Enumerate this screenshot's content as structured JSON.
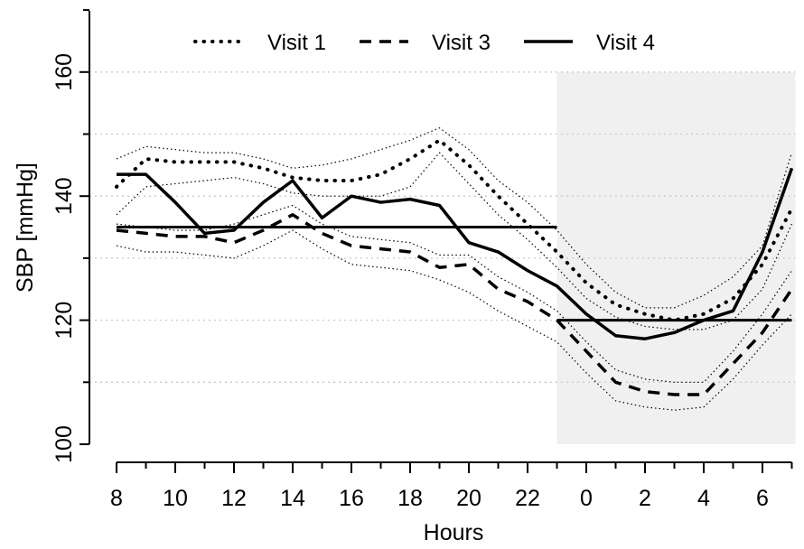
{
  "chart_data": {
    "type": "line",
    "title": "",
    "xlabel": "Hours",
    "ylabel": "SBP [mmHg]",
    "ylim": [
      100,
      170
    ],
    "yticks": [
      100,
      120,
      140,
      160
    ],
    "grid_y": [
      110,
      120,
      130,
      140,
      150,
      160
    ],
    "x_hours": [
      8,
      9,
      10,
      11,
      12,
      13,
      14,
      15,
      16,
      17,
      18,
      19,
      20,
      21,
      22,
      23,
      0,
      1,
      2,
      3,
      4,
      5,
      6,
      7
    ],
    "x_tick_labels": [
      "8",
      "10",
      "12",
      "14",
      "16",
      "18",
      "20",
      "22",
      "0",
      "2",
      "4",
      "6"
    ],
    "night_shading": {
      "from": "23",
      "to": "7",
      "color": "#f0f0f0"
    },
    "thresholds": [
      {
        "from": "8",
        "to": "23",
        "value": 135
      },
      {
        "from": "23",
        "to": "7",
        "value": 120
      }
    ],
    "legend_position": "top",
    "series": [
      {
        "name": "Visit 1",
        "style": "dotted",
        "values": [
          141.5,
          146,
          145.5,
          145.5,
          145.5,
          144.5,
          143,
          142.5,
          142.5,
          143.5,
          146,
          149,
          145,
          140,
          135.5,
          131,
          126,
          122.5,
          121,
          120,
          121,
          123.5,
          129,
          138
        ],
        "band_upper": [
          146,
          148,
          147.5,
          147,
          147,
          146,
          144.5,
          145,
          146,
          147.5,
          149,
          151,
          147.5,
          142.5,
          139,
          134.5,
          129,
          124.5,
          122,
          122,
          124,
          127,
          132,
          147
        ],
        "band_lower": [
          137,
          141.5,
          142,
          142.5,
          143,
          142,
          140.5,
          140,
          140,
          140,
          141.5,
          147,
          142,
          137,
          133,
          128.5,
          123.5,
          120.5,
          119,
          118.5,
          118.5,
          120,
          125,
          135.5
        ]
      },
      {
        "name": "Visit 3",
        "style": "dashed",
        "values": [
          134.5,
          134,
          133.5,
          133.5,
          132.5,
          134.5,
          137,
          134,
          132,
          131.5,
          131,
          128.5,
          129,
          125,
          123,
          120,
          115,
          110,
          108.5,
          108,
          108,
          113,
          118,
          125
        ],
        "band_upper": [
          135.5,
          135,
          134.5,
          134.5,
          135.5,
          137,
          138.5,
          135.5,
          133.5,
          133,
          132.5,
          130.5,
          130.5,
          127,
          124.5,
          121.5,
          116.5,
          112,
          110.5,
          110,
          110,
          115,
          121,
          128
        ],
        "band_lower": [
          132,
          131,
          131,
          130.5,
          130,
          132,
          134.5,
          131.5,
          129,
          128.5,
          128,
          126.5,
          124.5,
          121.5,
          119,
          116.5,
          111.5,
          107,
          106,
          105.5,
          106,
          110.5,
          116,
          121
        ]
      },
      {
        "name": "Visit 4",
        "style": "solid",
        "values": [
          143.5,
          143.5,
          139,
          134,
          134.5,
          139,
          142.5,
          136.5,
          140,
          139,
          139.5,
          138.5,
          132.5,
          131,
          128,
          125.5,
          121,
          117.5,
          117,
          118,
          120,
          121.5,
          131,
          144.5
        ],
        "band_upper": [],
        "band_lower": []
      }
    ]
  }
}
